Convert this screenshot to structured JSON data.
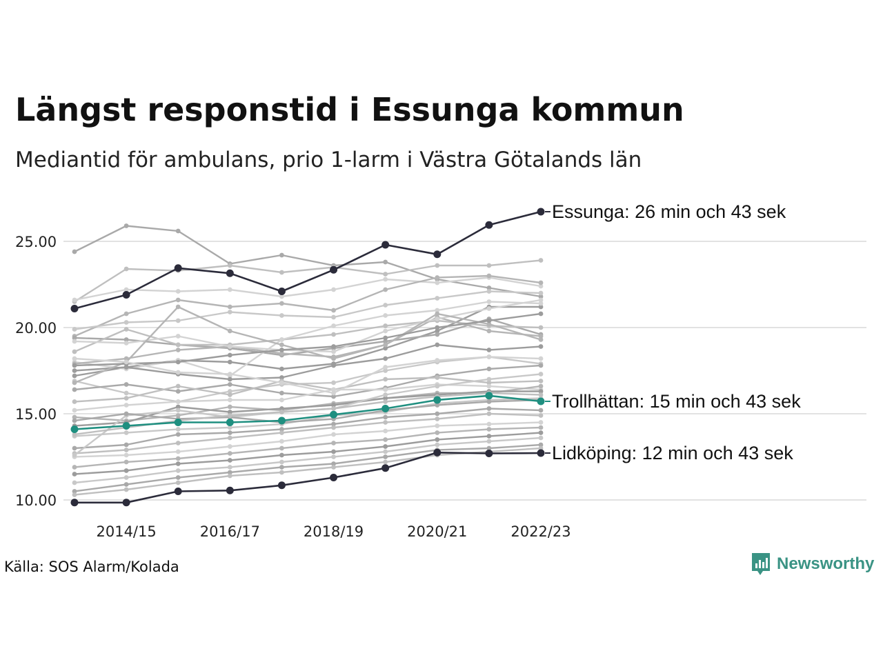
{
  "title": "Längst responstid i Essunga kommun",
  "subtitle": "Mediantid för ambulans, prio 1-larm i Västra Götalands län",
  "source": "Källa: SOS Alarm/Kolada",
  "brand": {
    "name": "Newsworthy",
    "icon": "newsworthy-chart-logo-icon",
    "color": "#3a9384"
  },
  "colors": {
    "background_lines": [
      "#a9a9a9",
      "#bfbfbf",
      "#d3d3d3",
      "#b5b5b5",
      "#9c9c9c",
      "#c8c8c8"
    ],
    "highlight_dark": "#2b2b3a",
    "highlight_teal": "#1f8f80",
    "grid": "#e2e2e2"
  },
  "chart_data": {
    "type": "line",
    "x": [
      "2013/14",
      "2014/15",
      "2015/16",
      "2016/17",
      "2017/18",
      "2018/19",
      "2019/20",
      "2020/21",
      "2021/22",
      "2022/23"
    ],
    "x_tick_labels": [
      "2014/15",
      "2016/17",
      "2018/19",
      "2020/21",
      "2022/23"
    ],
    "y_ticks": [
      10,
      15,
      20,
      25
    ],
    "y_tick_labels": [
      "10.00",
      "15.00",
      "20.00",
      "25.00"
    ],
    "ylim": [
      9.4,
      27.4
    ],
    "grid": true,
    "legend": "none",
    "highlighted": [
      {
        "name": "Essunga",
        "label": "Essunga: 26 min och 43 sek",
        "style": "dark",
        "values": [
          21.1,
          21.9,
          23.45,
          23.15,
          22.1,
          23.35,
          24.8,
          24.25,
          25.95,
          26.72
        ]
      },
      {
        "name": "Trollhättan",
        "label": "Trollhättan: 15 min och 43 sek",
        "style": "teal",
        "values": [
          14.1,
          14.3,
          14.5,
          14.5,
          14.6,
          14.95,
          15.3,
          15.8,
          16.05,
          15.72
        ]
      },
      {
        "name": "Lidköping",
        "label": "Lidköping: 12 min och 43 sek",
        "style": "dark",
        "values": [
          9.85,
          9.85,
          10.5,
          10.55,
          10.85,
          11.3,
          11.85,
          12.75,
          12.7,
          12.72
        ]
      }
    ],
    "background_series": [
      [
        24.4,
        25.9,
        25.6,
        23.7,
        24.2,
        23.6,
        23.8,
        22.8,
        22.3,
        21.8
      ],
      [
        21.5,
        23.4,
        23.3,
        23.6,
        23.2,
        23.5,
        23.1,
        23.6,
        23.6,
        23.9
      ],
      [
        21.6,
        22.2,
        22.1,
        22.2,
        21.8,
        22.2,
        22.8,
        22.6,
        22.9,
        22.4
      ],
      [
        19.5,
        20.8,
        21.6,
        21.2,
        21.4,
        21.0,
        22.2,
        22.9,
        23.0,
        22.6
      ],
      [
        17.2,
        17.7,
        18.1,
        18.0,
        17.6,
        17.9,
        18.8,
        19.8,
        21.2,
        21.2
      ],
      [
        19.9,
        20.3,
        20.4,
        20.9,
        20.7,
        20.6,
        21.3,
        21.7,
        22.1,
        22.0
      ],
      [
        19.4,
        19.3,
        19.0,
        18.8,
        18.4,
        18.8,
        19.2,
        19.6,
        20.5,
        19.6
      ],
      [
        18.6,
        19.9,
        19.0,
        19.0,
        19.3,
        19.6,
        20.1,
        20.4,
        20.1,
        20.0
      ],
      [
        18.0,
        17.6,
        18.1,
        17.2,
        19.3,
        20.1,
        20.7,
        21.0,
        21.5,
        21.4
      ],
      [
        17.9,
        18.2,
        18.7,
        18.9,
        18.5,
        18.3,
        19.0,
        20.6,
        19.8,
        19.5
      ],
      [
        17.5,
        17.7,
        17.3,
        17.0,
        17.1,
        17.8,
        18.2,
        19.0,
        18.7,
        18.9
      ],
      [
        16.9,
        16.2,
        15.7,
        16.3,
        16.7,
        16.8,
        17.5,
        18.0,
        18.3,
        17.9
      ],
      [
        16.4,
        16.7,
        16.3,
        16.7,
        16.2,
        16.0,
        16.5,
        17.2,
        17.6,
        17.8
      ],
      [
        15.7,
        15.9,
        16.6,
        16.1,
        16.9,
        16.4,
        17.0,
        17.1,
        16.8,
        16.9
      ],
      [
        15.2,
        15.5,
        15.7,
        15.8,
        15.8,
        16.4,
        16.4,
        16.7,
        16.6,
        16.4
      ],
      [
        14.8,
        14.6,
        14.9,
        15.4,
        15.2,
        15.6,
        15.9,
        16.2,
        16.2,
        16.6
      ],
      [
        14.3,
        14.5,
        15.4,
        15.1,
        15.3,
        15.5,
        15.9,
        16.1,
        16.3,
        16.3
      ],
      [
        13.7,
        13.9,
        14.1,
        14.2,
        14.4,
        14.9,
        15.1,
        15.6,
        15.8,
        15.9
      ],
      [
        13.0,
        13.2,
        13.8,
        13.9,
        14.1,
        14.4,
        14.8,
        15.0,
        15.3,
        15.2
      ],
      [
        12.7,
        12.9,
        13.3,
        13.6,
        13.9,
        14.2,
        14.5,
        14.7,
        15.0,
        14.9
      ],
      [
        12.5,
        12.6,
        12.8,
        13.1,
        13.4,
        13.8,
        14.0,
        14.3,
        14.4,
        14.5
      ],
      [
        11.9,
        12.2,
        12.4,
        12.7,
        13.0,
        13.3,
        13.5,
        13.9,
        14.1,
        14.2
      ],
      [
        11.5,
        11.7,
        12.1,
        12.3,
        12.6,
        12.8,
        13.1,
        13.5,
        13.7,
        13.9
      ],
      [
        11.0,
        11.3,
        11.7,
        11.9,
        12.2,
        12.5,
        12.8,
        13.2,
        13.4,
        13.6
      ],
      [
        10.5,
        10.9,
        11.3,
        11.6,
        11.9,
        12.1,
        12.5,
        12.9,
        13.0,
        13.2
      ],
      [
        10.3,
        10.6,
        11.0,
        11.4,
        11.6,
        11.9,
        12.2,
        12.6,
        12.8,
        13.0
      ],
      [
        19.2,
        19.1,
        19.5,
        18.9,
        18.7,
        18.6,
        19.8,
        20.5,
        21.1,
        21.6
      ],
      [
        16.8,
        18.0,
        21.2,
        19.8,
        19.0,
        18.2,
        19.0,
        20.8,
        20.2,
        19.3
      ],
      [
        17.8,
        17.9,
        18.0,
        18.4,
        18.7,
        18.9,
        19.4,
        20.0,
        20.4,
        20.8
      ],
      [
        12.6,
        14.9,
        15.2,
        14.8,
        15.1,
        15.3,
        16.1,
        16.6,
        17.0,
        17.3
      ],
      [
        14.6,
        15.0,
        14.7,
        14.8,
        14.5,
        14.7,
        15.2,
        15.5,
        15.7,
        15.8
      ],
      [
        13.8,
        14.2,
        14.6,
        14.9,
        15.1,
        15.3,
        15.7,
        16.0,
        16.2,
        16.1
      ],
      [
        18.2,
        18.0,
        17.4,
        17.3,
        16.8,
        16.2,
        17.7,
        18.1,
        18.3,
        18.2
      ]
    ]
  }
}
